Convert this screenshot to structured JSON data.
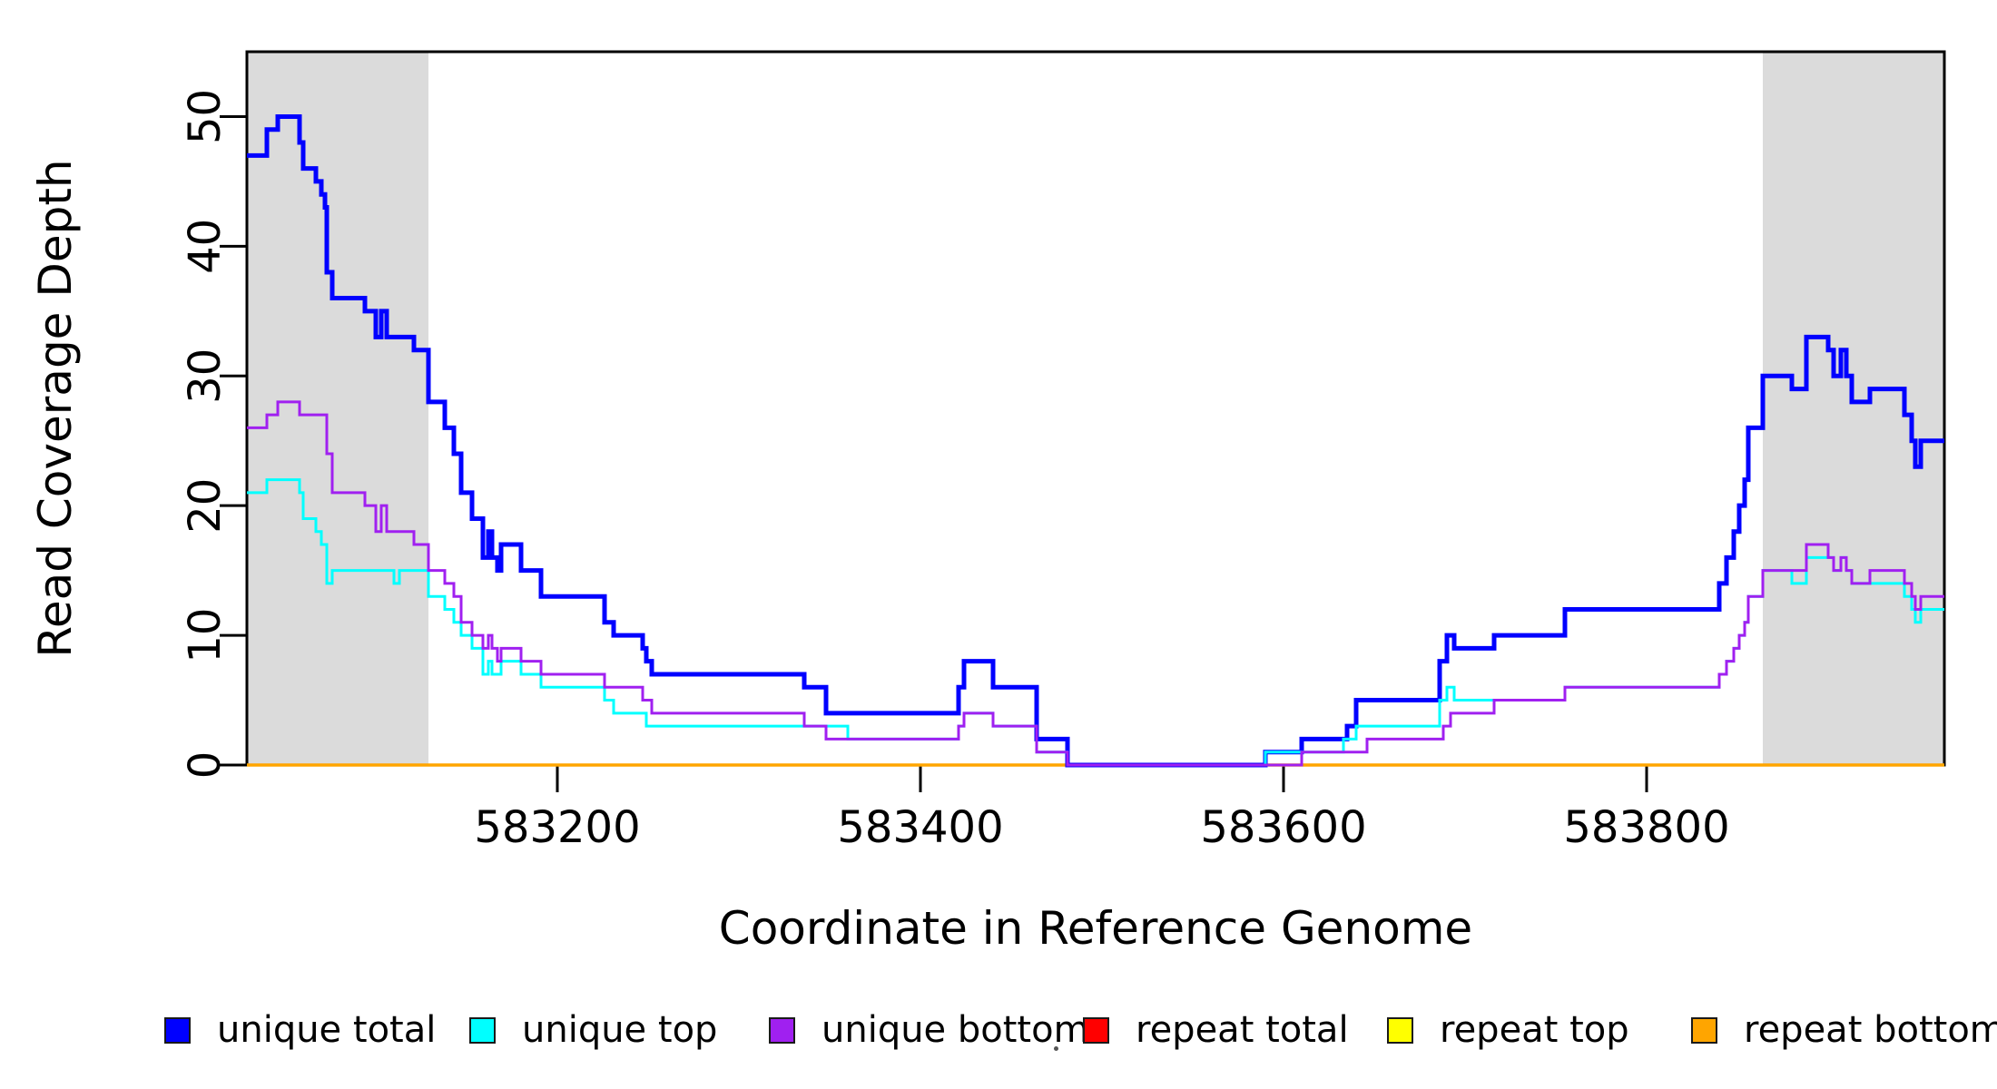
{
  "figure": {
    "background": "#FFFFFF",
    "border_color": "#000000",
    "shade_color": "#DBDBDB"
  },
  "x_axis": {
    "label": "Coordinate in Reference Genome",
    "ticks": [
      583200,
      583400,
      583600,
      583800
    ]
  },
  "y_axis": {
    "label": "Read Coverage Depth",
    "ticks": [
      0,
      10,
      20,
      30,
      40,
      50
    ]
  },
  "legend": {
    "items": [
      {
        "label": "unique total",
        "color": "#0000FF"
      },
      {
        "label": "unique top",
        "color": "#00FFFF"
      },
      {
        "label": "unique bottom",
        "color": "#A020F0"
      },
      {
        "label": "repeat total",
        "color": "#FF0000"
      },
      {
        "label": "repeat top",
        "color": "#FFFF00"
      },
      {
        "label": "repeat bottom",
        "color": "#FFA500"
      }
    ]
  },
  "chart_data": {
    "type": "line",
    "subtype": "step",
    "title": "",
    "xlabel": "Coordinate in Reference Genome",
    "ylabel": "Read Coverage Depth",
    "xlim": [
      583029,
      583964
    ],
    "ylim": [
      0,
      55
    ],
    "x_ticks": [
      583200,
      583400,
      583600,
      583800
    ],
    "y_ticks": [
      0,
      10,
      20,
      30,
      40,
      50
    ],
    "grid": false,
    "legend_position": "bottom",
    "shaded_regions": [
      {
        "x0": 583029,
        "x1": 583129,
        "color": "#DBDBDB"
      },
      {
        "x0": 583864,
        "x1": 583964,
        "color": "#DBDBDB"
      }
    ],
    "series": [
      {
        "name": "repeat total",
        "color": "#FF0000",
        "width": 3,
        "steps": [
          [
            583029,
            0
          ]
        ]
      },
      {
        "name": "repeat top",
        "color": "#FFFF00",
        "width": 3,
        "steps": [
          [
            583029,
            0
          ]
        ]
      },
      {
        "name": "repeat bottom",
        "color": "#FFA500",
        "width": 3.5,
        "steps": [
          [
            583029,
            0
          ]
        ]
      },
      {
        "name": "unique total",
        "color": "#0000FF",
        "width": 5,
        "steps": [
          [
            583029,
            47
          ],
          [
            583040,
            49
          ],
          [
            583046,
            50
          ],
          [
            583058,
            48
          ],
          [
            583060,
            46
          ],
          [
            583067,
            45
          ],
          [
            583070,
            44
          ],
          [
            583072,
            43
          ],
          [
            583073,
            38
          ],
          [
            583076,
            36
          ],
          [
            583094,
            35
          ],
          [
            583100,
            33
          ],
          [
            583103,
            35
          ],
          [
            583106,
            33
          ],
          [
            583121,
            32
          ],
          [
            583129,
            28
          ],
          [
            583138,
            26
          ],
          [
            583143,
            24
          ],
          [
            583147,
            21
          ],
          [
            583153,
            19
          ],
          [
            583159,
            16
          ],
          [
            583162,
            18
          ],
          [
            583164,
            16
          ],
          [
            583167,
            15
          ],
          [
            583169,
            17
          ],
          [
            583180,
            15
          ],
          [
            583191,
            13
          ],
          [
            583226,
            11
          ],
          [
            583231,
            10
          ],
          [
            583247,
            9
          ],
          [
            583249,
            8
          ],
          [
            583252,
            7
          ],
          [
            583336,
            6
          ],
          [
            583348,
            4
          ],
          [
            583421,
            6
          ],
          [
            583424,
            8
          ],
          [
            583440,
            6
          ],
          [
            583464,
            2
          ],
          [
            583481,
            0
          ],
          [
            583590,
            1
          ],
          [
            583610,
            2
          ],
          [
            583635,
            3
          ],
          [
            583640,
            5
          ],
          [
            583686,
            8
          ],
          [
            583690,
            10
          ],
          [
            583694,
            9
          ],
          [
            583716,
            10
          ],
          [
            583755,
            12
          ],
          [
            583840,
            14
          ],
          [
            583844,
            16
          ],
          [
            583848,
            18
          ],
          [
            583851,
            20
          ],
          [
            583854,
            22
          ],
          [
            583856,
            26
          ],
          [
            583864,
            30
          ],
          [
            583880,
            29
          ],
          [
            583888,
            33
          ],
          [
            583900,
            32
          ],
          [
            583903,
            30
          ],
          [
            583907,
            32
          ],
          [
            583910,
            30
          ],
          [
            583913,
            28
          ],
          [
            583923,
            29
          ],
          [
            583942,
            27
          ],
          [
            583946,
            25
          ],
          [
            583948,
            23
          ],
          [
            583951,
            25
          ]
        ]
      },
      {
        "name": "unique top",
        "color": "#00FFFF",
        "width": 3,
        "steps": [
          [
            583029,
            21
          ],
          [
            583040,
            22
          ],
          [
            583058,
            21
          ],
          [
            583060,
            19
          ],
          [
            583067,
            18
          ],
          [
            583070,
            17
          ],
          [
            583073,
            14
          ],
          [
            583076,
            15
          ],
          [
            583110,
            14
          ],
          [
            583113,
            15
          ],
          [
            583129,
            13
          ],
          [
            583138,
            12
          ],
          [
            583143,
            11
          ],
          [
            583147,
            10
          ],
          [
            583153,
            9
          ],
          [
            583159,
            7
          ],
          [
            583162,
            8
          ],
          [
            583164,
            7
          ],
          [
            583169,
            8
          ],
          [
            583180,
            7
          ],
          [
            583191,
            6
          ],
          [
            583226,
            5
          ],
          [
            583231,
            4
          ],
          [
            583249,
            3
          ],
          [
            583360,
            2
          ],
          [
            583421,
            3
          ],
          [
            583424,
            4
          ],
          [
            583440,
            3
          ],
          [
            583464,
            1
          ],
          [
            583481,
            0
          ],
          [
            583590,
            1
          ],
          [
            583633,
            2
          ],
          [
            583640,
            3
          ],
          [
            583686,
            5
          ],
          [
            583690,
            6
          ],
          [
            583694,
            5
          ],
          [
            583755,
            6
          ],
          [
            583840,
            7
          ],
          [
            583844,
            8
          ],
          [
            583848,
            9
          ],
          [
            583851,
            10
          ],
          [
            583854,
            11
          ],
          [
            583856,
            13
          ],
          [
            583864,
            15
          ],
          [
            583880,
            14
          ],
          [
            583888,
            16
          ],
          [
            583903,
            15
          ],
          [
            583907,
            16
          ],
          [
            583910,
            15
          ],
          [
            583913,
            14
          ],
          [
            583942,
            13
          ],
          [
            583946,
            12
          ],
          [
            583948,
            11
          ],
          [
            583951,
            12
          ]
        ]
      },
      {
        "name": "unique bottom",
        "color": "#A020F0",
        "width": 3,
        "steps": [
          [
            583029,
            26
          ],
          [
            583040,
            27
          ],
          [
            583046,
            28
          ],
          [
            583058,
            27
          ],
          [
            583073,
            24
          ],
          [
            583076,
            21
          ],
          [
            583094,
            20
          ],
          [
            583100,
            18
          ],
          [
            583103,
            20
          ],
          [
            583106,
            18
          ],
          [
            583121,
            17
          ],
          [
            583129,
            15
          ],
          [
            583138,
            14
          ],
          [
            583143,
            13
          ],
          [
            583147,
            11
          ],
          [
            583153,
            10
          ],
          [
            583159,
            9
          ],
          [
            583162,
            10
          ],
          [
            583164,
            9
          ],
          [
            583167,
            8
          ],
          [
            583169,
            9
          ],
          [
            583180,
            8
          ],
          [
            583191,
            7
          ],
          [
            583226,
            6
          ],
          [
            583247,
            5
          ],
          [
            583252,
            4
          ],
          [
            583336,
            3
          ],
          [
            583348,
            2
          ],
          [
            583421,
            3
          ],
          [
            583424,
            4
          ],
          [
            583440,
            3
          ],
          [
            583464,
            1
          ],
          [
            583481,
            0
          ],
          [
            583610,
            1
          ],
          [
            583646,
            2
          ],
          [
            583688,
            3
          ],
          [
            583692,
            4
          ],
          [
            583716,
            5
          ],
          [
            583755,
            6
          ],
          [
            583840,
            7
          ],
          [
            583844,
            8
          ],
          [
            583848,
            9
          ],
          [
            583851,
            10
          ],
          [
            583854,
            11
          ],
          [
            583856,
            13
          ],
          [
            583864,
            15
          ],
          [
            583888,
            17
          ],
          [
            583900,
            16
          ],
          [
            583903,
            15
          ],
          [
            583907,
            16
          ],
          [
            583910,
            15
          ],
          [
            583913,
            14
          ],
          [
            583923,
            15
          ],
          [
            583942,
            14
          ],
          [
            583946,
            13
          ],
          [
            583948,
            12
          ],
          [
            583951,
            13
          ]
        ]
      }
    ]
  }
}
